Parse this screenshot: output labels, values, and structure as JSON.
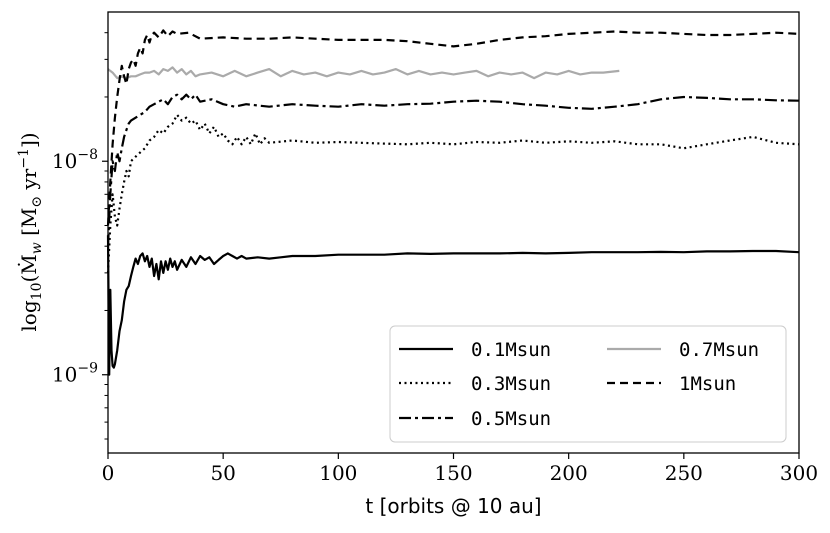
{
  "chart_data": {
    "type": "line",
    "title": "",
    "xlabel": "t [orbits @ 10 au]",
    "ylabel": "log10(Ṁw [M⊙ yr⁻¹])",
    "ylabel_parts": {
      "prefix": "log",
      "sub": "10",
      "body": "(Ṁ",
      "w_sub": "w",
      "bracket": " [M",
      "sun_sub": "⊙",
      "unit": " yr",
      "exp": "−1",
      "close": "])"
    },
    "xlim": [
      0,
      300
    ],
    "ylim": [
      4.3e-10,
      5e-08
    ],
    "yscale": "log",
    "grid": false,
    "legend_position": "lower-right",
    "legend_columns": 2,
    "x_ticks": [
      0,
      50,
      100,
      150,
      200,
      250,
      300
    ],
    "x_tick_labels": [
      "0",
      "50",
      "100",
      "150",
      "200",
      "250",
      "300"
    ],
    "y_major_ticks": [
      {
        "value": 1e-09,
        "base": "10",
        "exp": "−9"
      },
      {
        "value": 1e-08,
        "base": "10",
        "exp": "−8"
      }
    ],
    "y_minor_ticks": [
      5e-10,
      6e-10,
      7e-10,
      8e-10,
      9e-10,
      2e-09,
      3e-09,
      4e-09,
      5e-09,
      6e-09,
      7e-09,
      8e-09,
      9e-09,
      2e-08,
      3e-08,
      4e-08
    ],
    "series": [
      {
        "name": "0.1Msun",
        "color": "#000000",
        "style": "solid",
        "x": [
          0,
          0.5,
          1,
          1.5,
          2,
          2.5,
          3,
          4,
          5,
          6,
          7,
          8,
          9,
          10,
          11,
          12,
          13,
          14,
          15,
          16,
          17,
          18,
          19,
          20,
          21,
          22,
          23,
          24,
          25,
          26,
          27,
          28,
          29,
          30,
          32,
          34,
          36,
          38,
          40,
          42,
          44,
          46,
          48,
          50,
          52,
          54,
          56,
          58,
          60,
          65,
          70,
          75,
          80,
          90,
          100,
          110,
          120,
          130,
          140,
          150,
          160,
          170,
          180,
          190,
          200,
          210,
          220,
          230,
          240,
          250,
          260,
          270,
          280,
          290,
          300
        ],
        "y": [
          4.5e-09,
          1e-09,
          2.5e-09,
          1.3e-09,
          1.1e-09,
          1.08e-09,
          1.12e-09,
          1.3e-09,
          1.6e-09,
          1.8e-09,
          2.2e-09,
          2.5e-09,
          2.6e-09,
          2.9e-09,
          3.2e-09,
          3.5e-09,
          3.3e-09,
          3.6e-09,
          3.7e-09,
          3.4e-09,
          3.6e-09,
          3.2e-09,
          3.5e-09,
          2.9e-09,
          3.3e-09,
          2.8e-09,
          3.4e-09,
          3e-09,
          3.4e-09,
          3.1e-09,
          3.5e-09,
          3.2e-09,
          3.4e-09,
          3.1e-09,
          3.45e-09,
          3.2e-09,
          3.55e-09,
          3.3e-09,
          3.6e-09,
          3.45e-09,
          3.55e-09,
          3.3e-09,
          3.45e-09,
          3.6e-09,
          3.7e-09,
          3.6e-09,
          3.5e-09,
          3.6e-09,
          3.5e-09,
          3.55e-09,
          3.5e-09,
          3.55e-09,
          3.6e-09,
          3.6e-09,
          3.65e-09,
          3.65e-09,
          3.65e-09,
          3.7e-09,
          3.68e-09,
          3.7e-09,
          3.7e-09,
          3.7e-09,
          3.72e-09,
          3.7e-09,
          3.72e-09,
          3.75e-09,
          3.75e-09,
          3.75e-09,
          3.76e-09,
          3.75e-09,
          3.78e-09,
          3.78e-09,
          3.8e-09,
          3.8e-09,
          3.75e-09
        ]
      },
      {
        "name": "0.3Msun",
        "color": "#000000",
        "style": "dotted",
        "x": [
          0,
          1,
          2,
          3,
          4,
          5,
          6,
          7,
          8,
          9,
          10,
          12,
          14,
          16,
          18,
          20,
          22,
          24,
          26,
          28,
          30,
          32,
          34,
          36,
          38,
          40,
          42,
          44,
          46,
          48,
          50,
          52,
          54,
          56,
          58,
          60,
          62,
          64,
          66,
          68,
          70,
          80,
          90,
          100,
          110,
          120,
          130,
          140,
          150,
          160,
          170,
          180,
          190,
          200,
          210,
          220,
          230,
          240,
          250,
          260,
          270,
          280,
          290,
          300
        ],
        "y": [
          3e-09,
          5e-09,
          7e-09,
          5.5e-09,
          5e-09,
          6e-09,
          7e-09,
          8e-09,
          9e-09,
          8.5e-09,
          1e-08,
          1.05e-08,
          1.1e-08,
          1.15e-08,
          1.25e-08,
          1.3e-08,
          1.4e-08,
          1.35e-08,
          1.45e-08,
          1.5e-08,
          1.65e-08,
          1.55e-08,
          1.6e-08,
          1.5e-08,
          1.55e-08,
          1.4e-08,
          1.5e-08,
          1.35e-08,
          1.45e-08,
          1.3e-08,
          1.35e-08,
          1.25e-08,
          1.2e-08,
          1.3e-08,
          1.2e-08,
          1.3e-08,
          1.2e-08,
          1.35e-08,
          1.2e-08,
          1.28e-08,
          1.22e-08,
          1.25e-08,
          1.22e-08,
          1.23e-08,
          1.22e-08,
          1.21e-08,
          1.2e-08,
          1.22e-08,
          1.2e-08,
          1.23e-08,
          1.22e-08,
          1.25e-08,
          1.22e-08,
          1.24e-08,
          1.22e-08,
          1.24e-08,
          1.2e-08,
          1.2e-08,
          1.15e-08,
          1.2e-08,
          1.25e-08,
          1.3e-08,
          1.22e-08,
          1.2e-08
        ]
      },
      {
        "name": "0.5Msun",
        "color": "#000000",
        "style": "dashdot",
        "x": [
          0,
          1,
          2,
          3,
          4,
          5,
          6,
          7,
          8,
          9,
          10,
          12,
          14,
          16,
          18,
          20,
          22,
          24,
          26,
          28,
          30,
          32,
          34,
          36,
          38,
          40,
          45,
          50,
          55,
          60,
          70,
          80,
          90,
          100,
          110,
          120,
          130,
          140,
          150,
          160,
          170,
          180,
          190,
          200,
          210,
          220,
          230,
          240,
          250,
          260,
          270,
          280,
          290,
          300
        ],
        "y": [
          4e-09,
          7e-09,
          1e-08,
          9e-09,
          1.1e-08,
          1e-08,
          1.15e-08,
          1.3e-08,
          1.4e-08,
          1.5e-08,
          1.55e-08,
          1.6e-08,
          1.65e-08,
          1.7e-08,
          1.8e-08,
          1.85e-08,
          1.9e-08,
          1.95e-08,
          1.85e-08,
          2e-08,
          2.05e-08,
          1.95e-08,
          2.05e-08,
          1.95e-08,
          2.05e-08,
          1.9e-08,
          1.95e-08,
          1.85e-08,
          1.8e-08,
          1.85e-08,
          1.8e-08,
          1.85e-08,
          1.82e-08,
          1.8e-08,
          1.85e-08,
          1.82e-08,
          1.85e-08,
          1.86e-08,
          1.9e-08,
          1.92e-08,
          1.9e-08,
          1.85e-08,
          1.82e-08,
          1.78e-08,
          1.76e-08,
          1.8e-08,
          1.85e-08,
          1.95e-08,
          2e-08,
          1.98e-08,
          1.95e-08,
          1.95e-08,
          1.93e-08,
          1.92e-08
        ]
      },
      {
        "name": "0.7Msun",
        "color": "#aaaaaa",
        "style": "solid",
        "x": [
          0,
          2,
          4,
          6,
          8,
          10,
          12,
          14,
          16,
          18,
          20,
          22,
          24,
          26,
          28,
          30,
          32,
          34,
          36,
          38,
          40,
          45,
          50,
          55,
          60,
          65,
          70,
          75,
          80,
          85,
          90,
          95,
          100,
          105,
          110,
          115,
          120,
          125,
          130,
          135,
          140,
          145,
          150,
          155,
          160,
          165,
          170,
          175,
          180,
          185,
          190,
          195,
          200,
          205,
          210,
          215,
          222
        ],
        "y": [
          2.7e-08,
          2.6e-08,
          2.45e-08,
          2.5e-08,
          2.45e-08,
          2.5e-08,
          2.5e-08,
          2.55e-08,
          2.6e-08,
          2.6e-08,
          2.65e-08,
          2.55e-08,
          2.7e-08,
          2.65e-08,
          2.75e-08,
          2.6e-08,
          2.7e-08,
          2.55e-08,
          2.65e-08,
          2.5e-08,
          2.55e-08,
          2.6e-08,
          2.5e-08,
          2.65e-08,
          2.5e-08,
          2.6e-08,
          2.7e-08,
          2.5e-08,
          2.65e-08,
          2.55e-08,
          2.6e-08,
          2.5e-08,
          2.6e-08,
          2.55e-08,
          2.65e-08,
          2.55e-08,
          2.6e-08,
          2.7e-08,
          2.55e-08,
          2.65e-08,
          2.55e-08,
          2.6e-08,
          2.55e-08,
          2.6e-08,
          2.65e-08,
          2.5e-08,
          2.6e-08,
          2.55e-08,
          2.6e-08,
          2.45e-08,
          2.6e-08,
          2.55e-08,
          2.65e-08,
          2.55e-08,
          2.6e-08,
          2.6e-08,
          2.65e-08
        ]
      },
      {
        "name": "1Msun",
        "color": "#000000",
        "style": "dashed",
        "x": [
          0,
          1,
          2,
          3,
          4,
          5,
          6,
          7,
          8,
          9,
          10,
          11,
          12,
          13,
          14,
          15,
          16,
          17,
          18,
          19,
          20,
          22,
          24,
          26,
          28,
          30,
          35,
          40,
          50,
          60,
          70,
          80,
          90,
          100,
          110,
          120,
          130,
          140,
          150,
          160,
          170,
          180,
          190,
          200,
          210,
          220,
          230,
          240,
          250,
          260,
          270,
          280,
          290,
          300
        ],
        "y": [
          5e-09,
          8e-09,
          1.2e-08,
          1.6e-08,
          2e-08,
          2.4e-08,
          2.8e-08,
          2.5e-08,
          2.3e-08,
          2.7e-08,
          2.9e-08,
          3e-08,
          2.8e-08,
          3.2e-08,
          3.4e-08,
          3.2e-08,
          3.7e-08,
          3.9e-08,
          3.6e-08,
          3.9e-08,
          4e-08,
          3.8e-08,
          4.1e-08,
          3.85e-08,
          4.05e-08,
          3.95e-08,
          4e-08,
          3.75e-08,
          3.8e-08,
          3.75e-08,
          3.75e-08,
          3.8e-08,
          3.75e-08,
          3.7e-08,
          3.7e-08,
          3.7e-08,
          3.65e-08,
          3.55e-08,
          3.45e-08,
          3.55e-08,
          3.7e-08,
          3.8e-08,
          3.85e-08,
          3.95e-08,
          4e-08,
          4.05e-08,
          4e-08,
          4e-08,
          3.95e-08,
          3.9e-08,
          3.9e-08,
          3.95e-08,
          4e-08,
          3.95e-08
        ]
      }
    ],
    "legend": {
      "entries": [
        {
          "label": "0.1Msun",
          "series_index": 0
        },
        {
          "label": "0.3Msun",
          "series_index": 1
        },
        {
          "label": "0.5Msun",
          "series_index": 2
        },
        {
          "label": "0.7Msun",
          "series_index": 3
        },
        {
          "label": "1Msun",
          "series_index": 4
        }
      ]
    }
  }
}
